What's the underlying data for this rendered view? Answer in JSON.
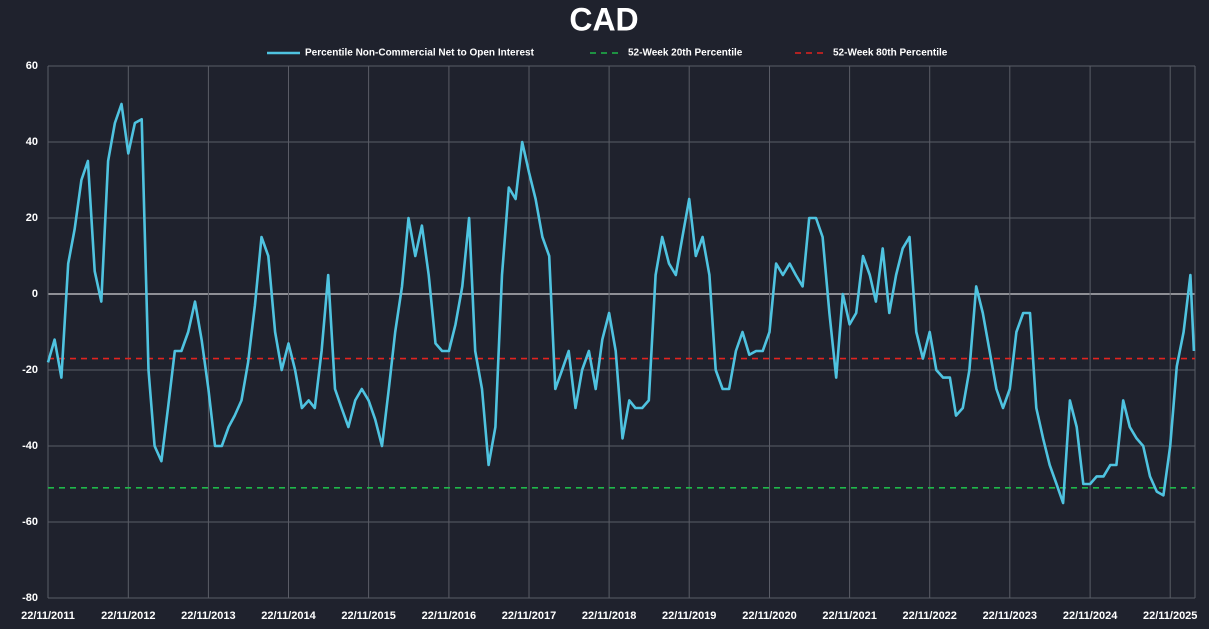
{
  "chart_data": {
    "type": "line",
    "title": "CAD",
    "x": [
      "2011-11-22",
      "2011-12-22",
      "2012-01-22",
      "2012-02-22",
      "2012-03-22",
      "2012-04-22",
      "2012-05-22",
      "2012-06-22",
      "2012-07-22",
      "2012-08-22",
      "2012-09-22",
      "2012-10-22",
      "2012-11-22",
      "2012-12-22",
      "2013-01-22",
      "2013-02-22",
      "2013-03-22",
      "2013-04-22",
      "2013-05-22",
      "2013-06-22",
      "2013-07-22",
      "2013-08-22",
      "2013-09-22",
      "2013-10-22",
      "2013-11-22",
      "2013-12-22",
      "2014-01-22",
      "2014-02-22",
      "2014-03-22",
      "2014-04-22",
      "2014-05-22",
      "2014-06-22",
      "2014-07-22",
      "2014-08-22",
      "2014-09-22",
      "2014-10-22",
      "2014-11-22",
      "2014-12-22",
      "2015-01-22",
      "2015-02-22",
      "2015-03-22",
      "2015-04-22",
      "2015-05-22",
      "2015-06-22",
      "2015-07-22",
      "2015-08-22",
      "2015-09-22",
      "2015-10-22",
      "2015-11-22",
      "2015-12-22",
      "2016-01-22",
      "2016-02-22",
      "2016-03-22",
      "2016-04-22",
      "2016-05-22",
      "2016-06-22",
      "2016-07-22",
      "2016-08-22",
      "2016-09-22",
      "2016-10-22",
      "2016-11-22",
      "2016-12-22",
      "2017-01-22",
      "2017-02-22",
      "2017-03-22",
      "2017-04-22",
      "2017-05-22",
      "2017-06-22",
      "2017-07-22",
      "2017-08-22",
      "2017-09-22",
      "2017-10-22",
      "2017-11-22",
      "2017-12-22",
      "2018-01-22",
      "2018-02-22",
      "2018-03-22",
      "2018-04-22",
      "2018-05-22",
      "2018-06-22",
      "2018-07-22",
      "2018-08-22",
      "2018-09-22",
      "2018-10-22",
      "2018-11-22",
      "2018-12-22",
      "2019-01-22",
      "2019-02-22",
      "2019-03-22",
      "2019-04-22",
      "2019-05-22",
      "2019-06-22",
      "2019-07-22",
      "2019-08-22",
      "2019-09-22",
      "2019-10-22",
      "2019-11-22",
      "2019-12-22",
      "2020-01-22",
      "2020-02-22",
      "2020-03-22",
      "2020-04-22",
      "2020-05-22",
      "2020-06-22",
      "2020-07-22",
      "2020-08-22",
      "2020-09-22",
      "2020-10-22",
      "2020-11-22",
      "2020-12-22",
      "2021-01-22",
      "2021-02-22",
      "2021-03-22",
      "2021-04-22",
      "2021-05-22",
      "2021-06-22",
      "2021-07-22",
      "2021-08-22",
      "2021-09-22",
      "2021-10-22",
      "2021-11-22",
      "2021-12-22",
      "2022-01-22",
      "2022-02-22",
      "2022-03-22",
      "2022-04-22",
      "2022-05-22",
      "2022-06-22",
      "2022-07-22",
      "2022-08-22",
      "2022-09-22",
      "2022-10-22",
      "2022-11-22",
      "2022-12-22",
      "2023-01-22",
      "2023-02-22",
      "2023-03-22",
      "2023-04-22",
      "2023-05-22",
      "2023-06-22",
      "2023-07-22",
      "2023-08-22",
      "2023-09-22",
      "2023-10-22",
      "2023-11-22",
      "2023-12-22",
      "2024-01-22",
      "2024-02-22",
      "2024-03-22",
      "2024-04-22",
      "2024-05-22",
      "2024-06-22",
      "2024-07-22",
      "2024-08-22",
      "2024-09-22",
      "2024-10-22",
      "2024-11-22",
      "2024-12-22",
      "2025-01-22",
      "2025-02-22",
      "2025-03-22",
      "2025-04-22",
      "2025-05-22",
      "2025-06-22",
      "2025-07-22",
      "2025-08-22",
      "2025-09-22",
      "2025-10-22",
      "2025-11-22",
      "2025-12-22",
      "2026-01-22",
      "2026-02-22",
      "2026-03-10"
    ],
    "series": [
      {
        "name": "Percentile Non-Commercial Net to Open Interest",
        "color": "#4fc3e0",
        "values": [
          -18,
          -12,
          -22,
          8,
          17,
          30,
          35,
          6,
          -2,
          35,
          45,
          50,
          37,
          45,
          46,
          -20,
          -40,
          -44,
          -30,
          -15,
          -15,
          -10,
          -2,
          -12,
          -25,
          -40,
          -40,
          -35,
          -32,
          -28,
          -18,
          -3,
          15,
          10,
          -10,
          -20,
          -13,
          -20,
          -30,
          -28,
          -30,
          -15,
          5,
          -25,
          -30,
          -35,
          -28,
          -25,
          -28,
          -33,
          -40,
          -25,
          -10,
          2,
          20,
          10,
          18,
          5,
          -13,
          -15,
          -15,
          -8,
          2,
          20,
          -15,
          -25,
          -45,
          -35,
          5,
          28,
          25,
          40,
          32,
          25,
          15,
          10,
          -25,
          -20,
          -15,
          -30,
          -20,
          -15,
          -25,
          -12,
          -5,
          -15,
          -38,
          -28,
          -30,
          -30,
          -28,
          5,
          15,
          8,
          5,
          15,
          25,
          10,
          15,
          5,
          -20,
          -25,
          -25,
          -15,
          -10,
          -16,
          -15,
          -15,
          -10,
          8,
          5,
          8,
          5,
          2,
          20,
          20,
          15,
          -5,
          -22,
          0,
          -8,
          -5,
          10,
          5,
          -2,
          12,
          -5,
          5,
          12,
          15,
          -10,
          -17,
          -10,
          -20,
          -22,
          -22,
          -32,
          -30,
          -20,
          2,
          -5,
          -15,
          -25,
          -30,
          -25,
          -10,
          -5,
          -5,
          -30,
          -38,
          -45,
          -50,
          -55,
          -28,
          -35,
          -50,
          -50,
          -48,
          -48,
          -45,
          -45,
          -28,
          -35,
          -38,
          -40,
          -48,
          -52,
          -53,
          -40,
          -19,
          -10,
          5,
          -15
        ]
      }
    ],
    "reference_lines": [
      {
        "name": "52-Week 20th Percentile",
        "color": "#1fb84a",
        "value": -51
      },
      {
        "name": "52-Week 80th Percentile",
        "color": "#e2231f",
        "value": -17
      }
    ],
    "xlim": [
      "2011-11-22",
      "2026-03-15"
    ],
    "xticks": [
      {
        "value": "2011-11-22",
        "label": "22/11/2011"
      },
      {
        "value": "2012-11-22",
        "label": "22/11/2012"
      },
      {
        "value": "2013-11-22",
        "label": "22/11/2013"
      },
      {
        "value": "2014-11-22",
        "label": "22/11/2014"
      },
      {
        "value": "2015-11-22",
        "label": "22/11/2015"
      },
      {
        "value": "2016-11-22",
        "label": "22/11/2016"
      },
      {
        "value": "2017-11-22",
        "label": "22/11/2017"
      },
      {
        "value": "2018-11-22",
        "label": "22/11/2018"
      },
      {
        "value": "2019-11-22",
        "label": "22/11/2019"
      },
      {
        "value": "2020-11-22",
        "label": "22/11/2020"
      },
      {
        "value": "2021-11-22",
        "label": "22/11/2021"
      },
      {
        "value": "2022-11-22",
        "label": "22/11/2022"
      },
      {
        "value": "2023-11-22",
        "label": "22/11/2023"
      },
      {
        "value": "2024-11-22",
        "label": "22/11/2024"
      },
      {
        "value": "2025-11-22",
        "label": "22/11/2025"
      }
    ],
    "ylim": [
      -80,
      60
    ],
    "yticks": [
      -80,
      -60,
      -40,
      -20,
      0,
      20,
      40,
      60
    ],
    "grid": true
  }
}
